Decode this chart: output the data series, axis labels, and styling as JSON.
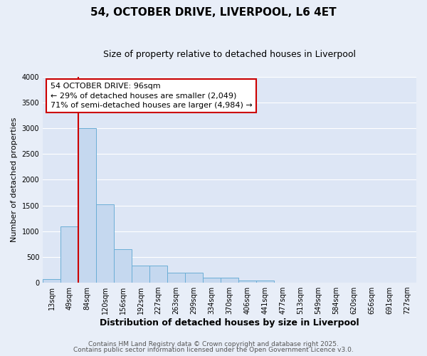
{
  "title": "54, OCTOBER DRIVE, LIVERPOOL, L6 4ET",
  "subtitle": "Size of property relative to detached houses in Liverpool",
  "xlabel": "Distribution of detached houses by size in Liverpool",
  "ylabel": "Number of detached properties",
  "bar_labels": [
    "13sqm",
    "49sqm",
    "84sqm",
    "120sqm",
    "156sqm",
    "192sqm",
    "227sqm",
    "263sqm",
    "299sqm",
    "334sqm",
    "370sqm",
    "406sqm",
    "441sqm",
    "477sqm",
    "513sqm",
    "549sqm",
    "584sqm",
    "620sqm",
    "656sqm",
    "691sqm",
    "727sqm"
  ],
  "bar_values": [
    70,
    1100,
    3000,
    1520,
    650,
    330,
    330,
    200,
    200,
    100,
    100,
    40,
    40,
    0,
    0,
    0,
    0,
    0,
    0,
    0,
    0
  ],
  "bar_color": "#c5d8ef",
  "bar_edge_color": "#6baed6",
  "vline_x": 1.5,
  "vline_color": "#cc0000",
  "annotation_text": "54 OCTOBER DRIVE: 96sqm\n← 29% of detached houses are smaller (2,049)\n71% of semi-detached houses are larger (4,984) →",
  "annotation_box_facecolor": "#ffffff",
  "annotation_box_edge": "#cc0000",
  "ylim": [
    0,
    4000
  ],
  "yticks": [
    0,
    500,
    1000,
    1500,
    2000,
    2500,
    3000,
    3500,
    4000
  ],
  "bg_color": "#e8eef8",
  "plot_bg_color": "#dde6f5",
  "grid_color": "#ffffff",
  "footnote1": "Contains HM Land Registry data © Crown copyright and database right 2025.",
  "footnote2": "Contains public sector information licensed under the Open Government Licence v3.0.",
  "title_fontsize": 11,
  "subtitle_fontsize": 9,
  "xlabel_fontsize": 9,
  "ylabel_fontsize": 8,
  "tick_fontsize": 7,
  "annotation_fontsize": 8,
  "footnote_fontsize": 6.5
}
